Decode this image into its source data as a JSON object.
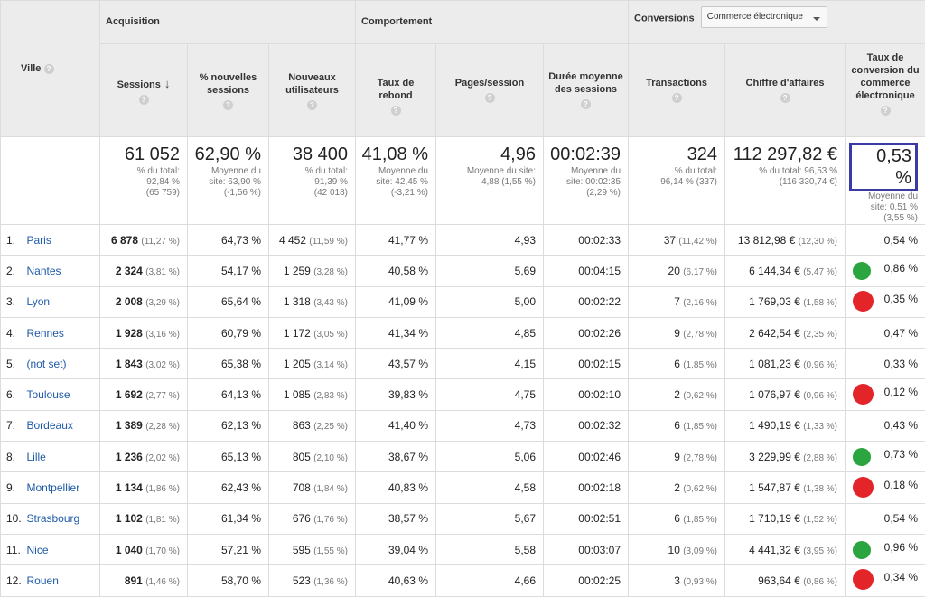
{
  "headers": {
    "ville": "Ville",
    "acquisition": "Acquisition",
    "comportement": "Comportement",
    "conversions": "Conversions",
    "dropdown_value": "Commerce électronique",
    "sessions": "Sessions",
    "pct_new_sessions": "% nouvelles sessions",
    "new_users": "Nouveaux utilisateurs",
    "bounce_rate": "Taux de rebond",
    "pages_session": "Pages/session",
    "avg_duration": "Durée moyenne des sessions",
    "transactions": "Transactions",
    "revenue": "Chiffre d'affaires",
    "conv_rate": "Taux de conversion du commerce électronique",
    "help": "?"
  },
  "totals": {
    "sessions": {
      "value": "61 052",
      "l1": "% du total:",
      "l2": "92,84 %",
      "l3": "(65 759)"
    },
    "pct_new": {
      "value": "62,90 %",
      "l1": "Moyenne du",
      "l2": "site: 63,90 %",
      "l3": "(-1,56 %)"
    },
    "new_users": {
      "value": "38 400",
      "l1": "% du total:",
      "l2": "91,39 %",
      "l3": "(42 018)"
    },
    "bounce": {
      "value": "41,08 %",
      "l1": "Moyenne du",
      "l2": "site: 42,45 %",
      "l3": "(-3,21 %)"
    },
    "pages": {
      "value": "4,96",
      "l1": "Moyenne du site:",
      "l2": "4,88 (1,55 %)",
      "l3": ""
    },
    "duration": {
      "value": "00:02:39",
      "l1": "Moyenne du",
      "l2": "site: 00:02:35",
      "l3": "(2,29 %)"
    },
    "transactions": {
      "value": "324",
      "l1": "% du total:",
      "l2": "96,14 % (337)",
      "l3": ""
    },
    "revenue": {
      "value": "112 297,82 €",
      "l1": "% du total: 96,53 %",
      "l2": "(116 330,74 €)",
      "l3": ""
    },
    "conv_rate": {
      "value": "0,53 %",
      "l1": "Moyenne du",
      "l2": "site: 0,51 %",
      "l3": "(3,55 %)"
    }
  },
  "rows": [
    {
      "n": "1.",
      "city": "Paris",
      "sessions": "6 878",
      "sessions_pct": "(11,27 %)",
      "pct_new": "64,73 %",
      "new_users": "4 452",
      "new_users_pct": "(11,59 %)",
      "bounce": "41,77 %",
      "pages": "4,93",
      "duration": "00:02:33",
      "trans": "37",
      "trans_pct": "(11,42 %)",
      "revenue": "13 812,98 €",
      "revenue_pct": "(12,30 %)",
      "rate": "0,54 %",
      "dot": ""
    },
    {
      "n": "2.",
      "city": "Nantes",
      "sessions": "2 324",
      "sessions_pct": "(3,81 %)",
      "pct_new": "54,17 %",
      "new_users": "1 259",
      "new_users_pct": "(3,28 %)",
      "bounce": "40,58 %",
      "pages": "5,69",
      "duration": "00:04:15",
      "trans": "20",
      "trans_pct": "(6,17 %)",
      "revenue": "6 144,34 €",
      "revenue_pct": "(5,47 %)",
      "rate": "0,86 %",
      "dot": "green"
    },
    {
      "n": "3.",
      "city": "Lyon",
      "sessions": "2 008",
      "sessions_pct": "(3,29 %)",
      "pct_new": "65,64 %",
      "new_users": "1 318",
      "new_users_pct": "(3,43 %)",
      "bounce": "41,09 %",
      "pages": "5,00",
      "duration": "00:02:22",
      "trans": "7",
      "trans_pct": "(2,16 %)",
      "revenue": "1 769,03 €",
      "revenue_pct": "(1,58 %)",
      "rate": "0,35 %",
      "dot": "red"
    },
    {
      "n": "4.",
      "city": "Rennes",
      "sessions": "1 928",
      "sessions_pct": "(3,16 %)",
      "pct_new": "60,79 %",
      "new_users": "1 172",
      "new_users_pct": "(3,05 %)",
      "bounce": "41,34 %",
      "pages": "4,85",
      "duration": "00:02:26",
      "trans": "9",
      "trans_pct": "(2,78 %)",
      "revenue": "2 642,54 €",
      "revenue_pct": "(2,35 %)",
      "rate": "0,47 %",
      "dot": ""
    },
    {
      "n": "5.",
      "city": "(not set)",
      "sessions": "1 843",
      "sessions_pct": "(3,02 %)",
      "pct_new": "65,38 %",
      "new_users": "1 205",
      "new_users_pct": "(3,14 %)",
      "bounce": "43,57 %",
      "pages": "4,15",
      "duration": "00:02:15",
      "trans": "6",
      "trans_pct": "(1,85 %)",
      "revenue": "1 081,23 €",
      "revenue_pct": "(0,96 %)",
      "rate": "0,33 %",
      "dot": ""
    },
    {
      "n": "6.",
      "city": "Toulouse",
      "sessions": "1 692",
      "sessions_pct": "(2,77 %)",
      "pct_new": "64,13 %",
      "new_users": "1 085",
      "new_users_pct": "(2,83 %)",
      "bounce": "39,83 %",
      "pages": "4,75",
      "duration": "00:02:10",
      "trans": "2",
      "trans_pct": "(0,62 %)",
      "revenue": "1 076,97 €",
      "revenue_pct": "(0,96 %)",
      "rate": "0,12 %",
      "dot": "red"
    },
    {
      "n": "7.",
      "city": "Bordeaux",
      "sessions": "1 389",
      "sessions_pct": "(2,28 %)",
      "pct_new": "62,13 %",
      "new_users": "863",
      "new_users_pct": "(2,25 %)",
      "bounce": "41,40 %",
      "pages": "4,73",
      "duration": "00:02:32",
      "trans": "6",
      "trans_pct": "(1,85 %)",
      "revenue": "1 490,19 €",
      "revenue_pct": "(1,33 %)",
      "rate": "0,43 %",
      "dot": ""
    },
    {
      "n": "8.",
      "city": "Lille",
      "sessions": "1 236",
      "sessions_pct": "(2,02 %)",
      "pct_new": "65,13 %",
      "new_users": "805",
      "new_users_pct": "(2,10 %)",
      "bounce": "38,67 %",
      "pages": "5,06",
      "duration": "00:02:46",
      "trans": "9",
      "trans_pct": "(2,78 %)",
      "revenue": "3 229,99 €",
      "revenue_pct": "(2,88 %)",
      "rate": "0,73 %",
      "dot": "green"
    },
    {
      "n": "9.",
      "city": "Montpellier",
      "sessions": "1 134",
      "sessions_pct": "(1,86 %)",
      "pct_new": "62,43 %",
      "new_users": "708",
      "new_users_pct": "(1,84 %)",
      "bounce": "40,83 %",
      "pages": "4,58",
      "duration": "00:02:18",
      "trans": "2",
      "trans_pct": "(0,62 %)",
      "revenue": "1 547,87 €",
      "revenue_pct": "(1,38 %)",
      "rate": "0,18 %",
      "dot": "red"
    },
    {
      "n": "10.",
      "city": "Strasbourg",
      "sessions": "1 102",
      "sessions_pct": "(1,81 %)",
      "pct_new": "61,34 %",
      "new_users": "676",
      "new_users_pct": "(1,76 %)",
      "bounce": "38,57 %",
      "pages": "5,67",
      "duration": "00:02:51",
      "trans": "6",
      "trans_pct": "(1,85 %)",
      "revenue": "1 710,19 €",
      "revenue_pct": "(1,52 %)",
      "rate": "0,54 %",
      "dot": ""
    },
    {
      "n": "11.",
      "city": "Nice",
      "sessions": "1 040",
      "sessions_pct": "(1,70 %)",
      "pct_new": "57,21 %",
      "new_users": "595",
      "new_users_pct": "(1,55 %)",
      "bounce": "39,04 %",
      "pages": "5,58",
      "duration": "00:03:07",
      "trans": "10",
      "trans_pct": "(3,09 %)",
      "revenue": "4 441,32 €",
      "revenue_pct": "(3,95 %)",
      "rate": "0,96 %",
      "dot": "green"
    },
    {
      "n": "12.",
      "city": "Rouen",
      "sessions": "891",
      "sessions_pct": "(1,46 %)",
      "pct_new": "58,70 %",
      "new_users": "523",
      "new_users_pct": "(1,36 %)",
      "bounce": "40,63 %",
      "pages": "4,66",
      "duration": "00:02:25",
      "trans": "3",
      "trans_pct": "(0,93 %)",
      "revenue": "963,64 €",
      "revenue_pct": "(0,86 %)",
      "rate": "0,34 %",
      "dot": "red"
    }
  ],
  "colors": {
    "accent": "#3b3ba5",
    "link": "#1e5aa8",
    "green": "#2aa540",
    "red": "#e3252a"
  }
}
